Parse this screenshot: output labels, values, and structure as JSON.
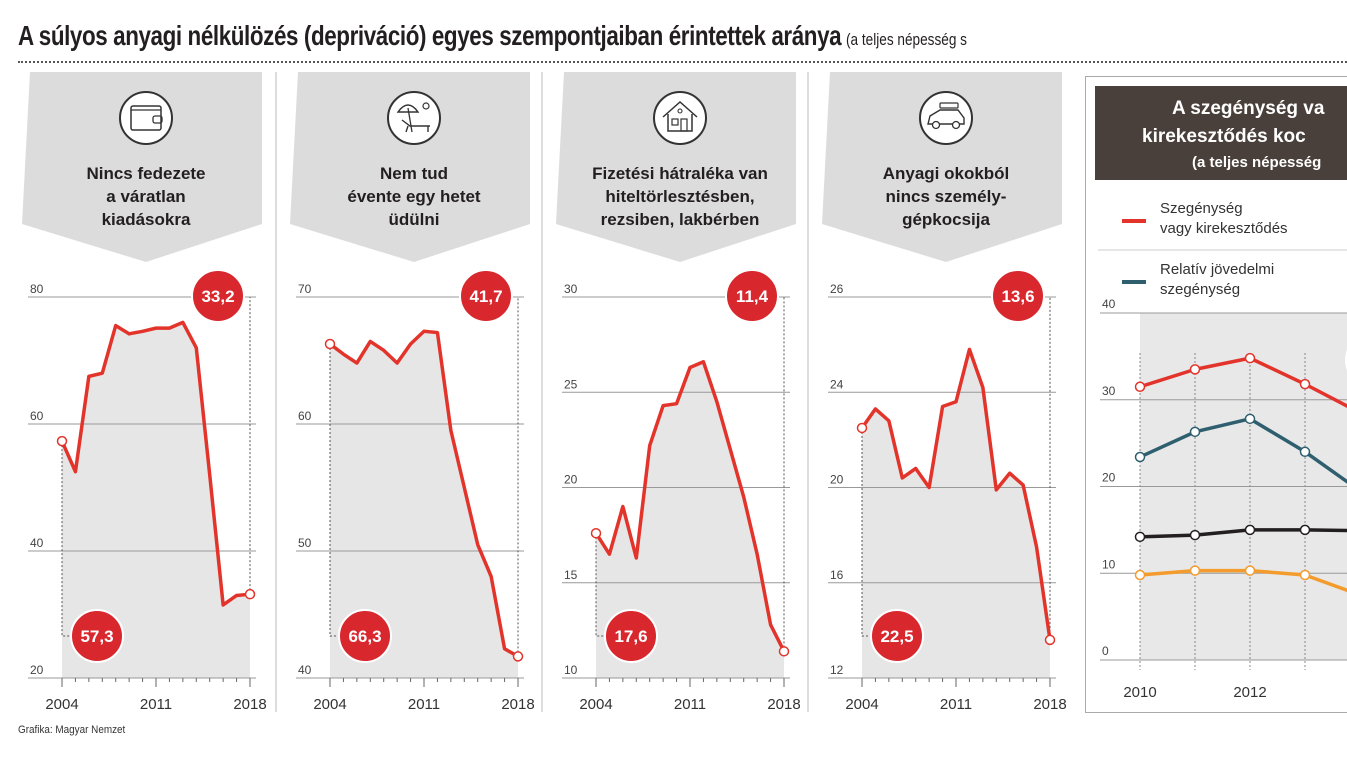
{
  "header": {
    "title": "A súlyos anyagi nélkülözés (depriváció) egyes szempontjaiban érintettek aránya",
    "subtitle": "(a teljes népesség s"
  },
  "footer": {
    "credit": "Grafika: Magyar Nemzet"
  },
  "colors": {
    "line": "#e3342b",
    "badge": "#d9272e",
    "fill": "#e6e6e6",
    "banner": "#dcdcdc",
    "dark_header": "#4a403b",
    "teal": "#2f5f6f",
    "black": "#231f20",
    "orange": "#f39c2d"
  },
  "chart_data": [
    {
      "type": "area",
      "icon": "wallet-icon",
      "title": [
        "Nincs fedezete",
        "a váratlan",
        "kiadásokra"
      ],
      "x": [
        2004,
        2005,
        2006,
        2007,
        2008,
        2009,
        2010,
        2011,
        2012,
        2013,
        2014,
        2015,
        2016,
        2017,
        2018
      ],
      "x_tick_labels": [
        "2004",
        "2011",
        "2018"
      ],
      "y_ticks": [
        "80",
        "60",
        "40",
        "20"
      ],
      "ylim": [
        20,
        80
      ],
      "values": [
        57.3,
        52.5,
        67.5,
        68,
        75.5,
        74.2,
        74.6,
        75.1,
        75.1,
        76,
        72,
        52,
        31.5,
        33,
        33.2
      ],
      "start_label": "57,3",
      "end_label": "33,2"
    },
    {
      "type": "area",
      "icon": "beach-chair-icon",
      "title": [
        "Nem tud",
        "évente egy hetet",
        "üdülni"
      ],
      "x": [
        2004,
        2005,
        2006,
        2007,
        2008,
        2009,
        2010,
        2011,
        2012,
        2013,
        2014,
        2015,
        2016,
        2017,
        2018
      ],
      "x_tick_labels": [
        "2004",
        "2011",
        "2018"
      ],
      "y_ticks": [
        "70",
        "60",
        "50",
        "40"
      ],
      "ylim": [
        40,
        70
      ],
      "values": [
        66.3,
        65.5,
        64.8,
        66.5,
        65.8,
        64.8,
        66.3,
        67.3,
        67.2,
        59.5,
        55,
        50.5,
        48,
        42.3,
        41.7
      ],
      "start_label": "66,3",
      "end_label": "41,7"
    },
    {
      "type": "area",
      "icon": "house-icon",
      "title": [
        "Fizetési hátraléka van",
        "hiteltörlesztésben,",
        "rezsiben, lakbérben"
      ],
      "x": [
        2004,
        2005,
        2006,
        2007,
        2008,
        2009,
        2010,
        2011,
        2012,
        2013,
        2014,
        2015,
        2016,
        2017,
        2018
      ],
      "x_tick_labels": [
        "2004",
        "2011",
        "2018"
      ],
      "y_ticks": [
        "30",
        "25",
        "20",
        "15",
        "10"
      ],
      "ylim": [
        10,
        30
      ],
      "values": [
        17.6,
        16.5,
        19,
        16.3,
        22.2,
        24.3,
        24.4,
        26.3,
        26.6,
        24.5,
        22,
        19.5,
        16.5,
        12.8,
        11.4
      ],
      "start_label": "17,6",
      "end_label": "11,4"
    },
    {
      "type": "area",
      "icon": "car-icon",
      "title": [
        "Anyagi okokból",
        "nincs személy-",
        "gépkocsija"
      ],
      "x": [
        2004,
        2005,
        2006,
        2007,
        2008,
        2009,
        2010,
        2011,
        2012,
        2013,
        2014,
        2015,
        2016,
        2017,
        2018
      ],
      "x_tick_labels": [
        "2004",
        "2011",
        "2018"
      ],
      "y_ticks": [
        "26",
        "24",
        "20",
        "16",
        "12"
      ],
      "ylim": [
        12,
        28
      ],
      "values": [
        22.5,
        23.3,
        22.8,
        20.4,
        20.8,
        20,
        23.4,
        23.6,
        25.8,
        24.2,
        19.9,
        20.6,
        20.1,
        17.5,
        13.6
      ],
      "start_label": "22,5",
      "end_label": "13,6"
    },
    {
      "type": "line",
      "title": [
        "A szegénység va",
        "kirekesztődés koc",
        "(a teljes népesség"
      ],
      "legend": [
        {
          "label": [
            "Szegénység",
            "vagy kirekesztődés"
          ],
          "color": "#e3342b"
        },
        {
          "label": [
            "Relatív jövedelmi",
            "szegénység"
          ],
          "color": "#2f5f6f"
        }
      ],
      "x": [
        2010,
        2011,
        2012,
        2013,
        2014
      ],
      "x_tick_labels": [
        "2010",
        "2012",
        "2"
      ],
      "y_ticks": [
        "40",
        "30",
        "20",
        "10",
        "0"
      ],
      "ylim": [
        0,
        40
      ],
      "series": [
        {
          "name": "Szegénység vagy kirekesztődés",
          "color": "#e3342b",
          "values": [
            31.5,
            33.5,
            34.8,
            31.8,
            28.5
          ]
        },
        {
          "name": "Relatív jövedelmi szegénység",
          "color": "#2f5f6f",
          "values": [
            23.4,
            26.3,
            27.8,
            24,
            19.5
          ]
        },
        {
          "color": "#231f20",
          "values": [
            14.2,
            14.4,
            15,
            15,
            14.9
          ]
        },
        {
          "color": "#f39c2d",
          "values": [
            9.8,
            10.3,
            10.3,
            9.8,
            7.5
          ]
        }
      ]
    }
  ]
}
